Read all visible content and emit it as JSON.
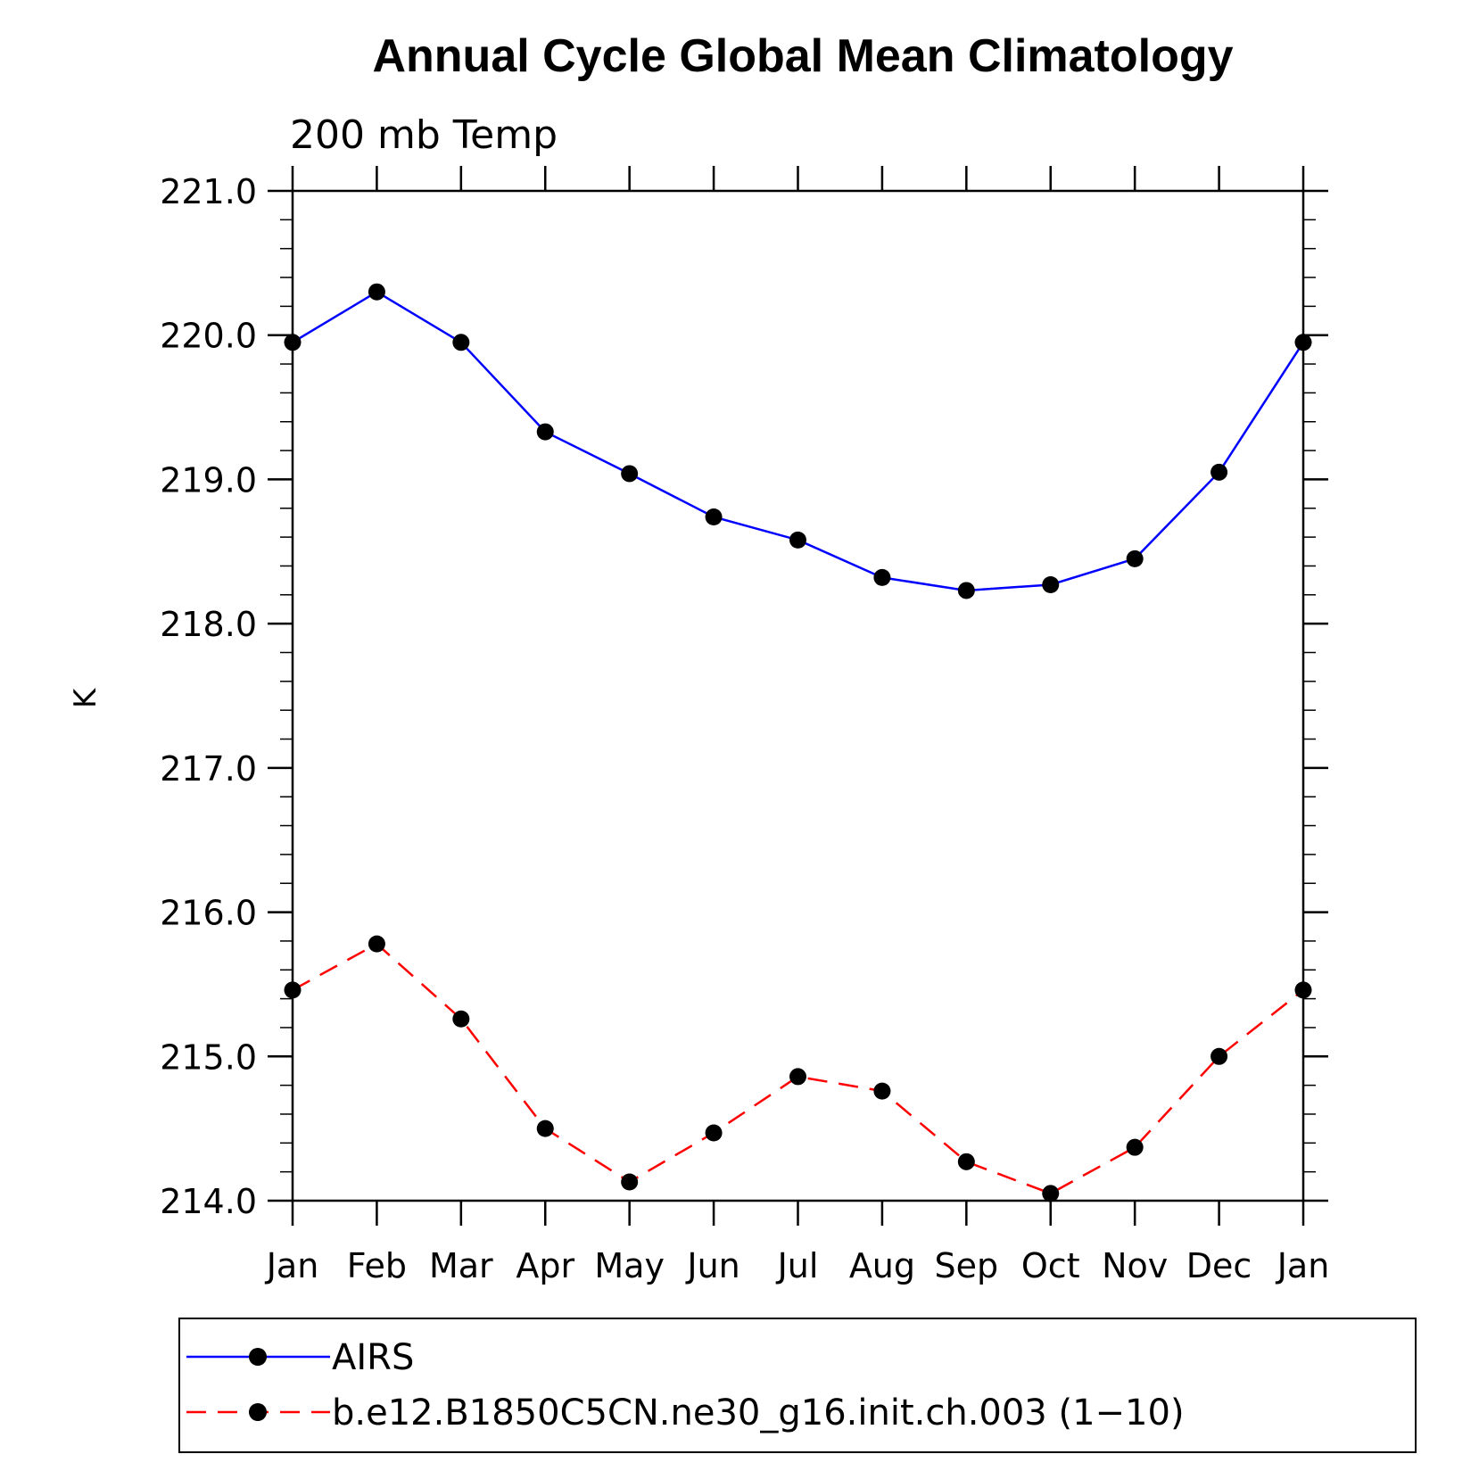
{
  "chart_data": {
    "type": "line",
    "title": "Annual Cycle Global Mean Climatology",
    "subtitle": "200 mb Temp",
    "xlabel": "",
    "ylabel": "K",
    "categories": [
      "Jan",
      "Feb",
      "Mar",
      "Apr",
      "May",
      "Jun",
      "Jul",
      "Aug",
      "Sep",
      "Oct",
      "Nov",
      "Dec",
      "Jan"
    ],
    "ylim": [
      214.0,
      221.0
    ],
    "yticks": [
      214.0,
      215.0,
      216.0,
      217.0,
      218.0,
      219.0,
      220.0,
      221.0
    ],
    "ytick_labels": [
      "214.0",
      "215.0",
      "216.0",
      "217.0",
      "218.0",
      "219.0",
      "220.0",
      "221.0"
    ],
    "grid": false,
    "legend_position": "bottom",
    "series": [
      {
        "name": "AIRS",
        "color": "#0000ff",
        "line_style": "solid",
        "marker": "filled-circle",
        "values": [
          219.95,
          220.3,
          219.95,
          219.33,
          219.04,
          218.74,
          218.58,
          218.32,
          218.23,
          218.27,
          218.45,
          219.05,
          219.95
        ]
      },
      {
        "name": "b.e12.B1850C5CN.ne30_g16.init.ch.003 (1−10)",
        "color": "#ff0000",
        "line_style": "dashed",
        "marker": "filled-circle",
        "values": [
          215.46,
          215.78,
          215.26,
          214.5,
          214.13,
          214.47,
          214.86,
          214.76,
          214.27,
          214.05,
          214.37,
          215.0,
          215.46
        ]
      }
    ]
  }
}
